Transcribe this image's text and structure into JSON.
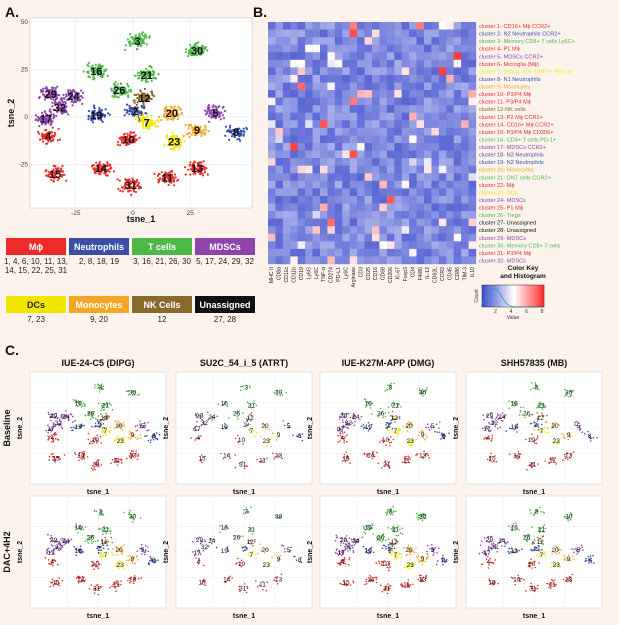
{
  "panels": {
    "a": "A.",
    "b": "B.",
    "c": "C."
  },
  "colors": {
    "macrophage": "#ee2a2a",
    "neutrophil": "#3a4fa8",
    "tcell": "#4cb848",
    "mdsc": "#8e44ad",
    "dc": "#f2e600",
    "monocyte": "#f5a623",
    "nk": "#8a6a2a",
    "unassigned": "#111111"
  },
  "panel_a": {
    "xlabel": "tsne_1",
    "ylabel": "tsne_2",
    "xticks": [
      "-25",
      "0",
      "25"
    ],
    "yticks": [
      "50",
      "25",
      "0",
      "-25",
      "-50"
    ],
    "cluster_labels": [
      {
        "id": "3",
        "x": 2,
        "y": 40,
        "type": "tcell"
      },
      {
        "id": "30",
        "x": 28,
        "y": 35,
        "type": "tcell"
      },
      {
        "id": "16",
        "x": -16,
        "y": 24,
        "type": "tcell"
      },
      {
        "id": "21",
        "x": 6,
        "y": 22,
        "type": "tcell"
      },
      {
        "id": "26",
        "x": -6,
        "y": 14,
        "type": "tcell"
      },
      {
        "id": "12",
        "x": 5,
        "y": 10,
        "type": "nk"
      },
      {
        "id": "29",
        "x": -36,
        "y": 12,
        "type": "mdsc"
      },
      {
        "id": "24",
        "x": -26,
        "y": 11,
        "type": "mdsc"
      },
      {
        "id": "32",
        "x": -32,
        "y": 5,
        "type": "mdsc"
      },
      {
        "id": "17",
        "x": -38,
        "y": -1,
        "type": "mdsc"
      },
      {
        "id": "19",
        "x": -16,
        "y": 1,
        "type": "neutrophil"
      },
      {
        "id": "2",
        "x": 1,
        "y": 3,
        "type": "neutrophil"
      },
      {
        "id": "7",
        "x": 6,
        "y": -3,
        "type": "dc"
      },
      {
        "id": "20",
        "x": 17,
        "y": 2,
        "type": "monocyte"
      },
      {
        "id": "5",
        "x": 36,
        "y": 2,
        "type": "mdsc"
      },
      {
        "id": "8",
        "x": 45,
        "y": -8,
        "type": "neutrophil"
      },
      {
        "id": "4",
        "x": -37,
        "y": -10,
        "type": "macrophage"
      },
      {
        "id": "10",
        "x": -2,
        "y": -12,
        "type": "macrophage"
      },
      {
        "id": "23",
        "x": 18,
        "y": -13,
        "type": "dc"
      },
      {
        "id": "9",
        "x": 28,
        "y": -7,
        "type": "monocyte"
      },
      {
        "id": "15",
        "x": -34,
        "y": -30,
        "type": "macrophage"
      },
      {
        "id": "14",
        "x": -14,
        "y": -27,
        "type": "macrophage"
      },
      {
        "id": "31",
        "x": -1,
        "y": -36,
        "type": "macrophage"
      },
      {
        "id": "11",
        "x": 15,
        "y": -32,
        "type": "macrophage"
      },
      {
        "id": "13",
        "x": 28,
        "y": -27,
        "type": "macrophage"
      }
    ]
  },
  "cell_types": [
    {
      "key": "macrophage",
      "name": "Mϕ",
      "clusters": "1, 4, 6, 10, 11, 13,\n14, 15, 22, 25, 31"
    },
    {
      "key": "neutrophil",
      "name": "Neutrophils",
      "clusters": "2, 8, 18, 19"
    },
    {
      "key": "tcell",
      "name": "T cells",
      "clusters": "3, 16, 21, 26, 30"
    },
    {
      "key": "mdsc",
      "name": "MDSCs",
      "clusters": "5, 17, 24, 29, 32"
    },
    {
      "key": "dc",
      "name": "DCs",
      "clusters": "7, 23"
    },
    {
      "key": "monocyte",
      "name": "Monocytes",
      "clusters": "9, 20"
    },
    {
      "key": "nk",
      "name": "NK Cells",
      "clusters": "12"
    },
    {
      "key": "unassigned",
      "name": "Unassigned",
      "clusters": "27, 28"
    }
  ],
  "panel_b": {
    "clusters": [
      {
        "label": "cluster 1- CD16+ Mϕ CCR2+",
        "type": "macrophage"
      },
      {
        "label": "cluster 2- N2 Neutrophils CCR2+",
        "type": "neutrophil"
      },
      {
        "label": "cluster 3- Memory CD8+ T cells Ly6C+",
        "type": "tcell"
      },
      {
        "label": "cluster 4- P1 Mϕ",
        "type": "macrophage"
      },
      {
        "label": "cluster 5- MDSCs CCR2+",
        "type": "mdsc"
      },
      {
        "label": "cluster 6- Microglia (Mϕ)",
        "type": "macrophage"
      },
      {
        "label": "cluster 7- DCs IL-10+ TIGIT+, PD-L1+",
        "type": "dc"
      },
      {
        "label": "cluster 8- N1 Neutrophils",
        "type": "neutrophil"
      },
      {
        "label": "cluster 9- Monocytes",
        "type": "monocyte"
      },
      {
        "label": "cluster 10- P3/P4 Mϕ",
        "type": "macrophage"
      },
      {
        "label": "cluster 11- P3/P4 Mϕ",
        "type": "macrophage"
      },
      {
        "label": "cluster 12-NK cells",
        "type": "nk"
      },
      {
        "label": "cluster 13- P2 Mϕ CCR2+",
        "type": "macrophage"
      },
      {
        "label": "cluster 14- CD16+ Mϕ CCR2+",
        "type": "macrophage"
      },
      {
        "label": "cluster 15- P3/P4 Mϕ CD206+",
        "type": "macrophage"
      },
      {
        "label": "cluster 16- CD4+ T cells PD-1+",
        "type": "tcell"
      },
      {
        "label": "cluster 17- MDSCs CCR2+",
        "type": "mdsc"
      },
      {
        "label": "cluster 18- N2 Neutrophils",
        "type": "neutrophil"
      },
      {
        "label": "cluster 19- N2 Neutrophils",
        "type": "neutrophil"
      },
      {
        "label": "cluster 20- Monocytes",
        "type": "monocyte"
      },
      {
        "label": "cluster 21- DNT cells CCR2+",
        "type": "tcell"
      },
      {
        "label": "cluster 22- Mϕ",
        "type": "macrophage"
      },
      {
        "label": "cluster 23- DCs",
        "type": "dc"
      },
      {
        "label": "cluster 24- MDSCs",
        "type": "mdsc"
      },
      {
        "label": "cluster 25- P1 Mϕ",
        "type": "macrophage"
      },
      {
        "label": "cluster 26- Tregs",
        "type": "tcell"
      },
      {
        "label": "cluster 27- Unassigned",
        "type": "unassigned"
      },
      {
        "label": "cluster 28- Unassigned",
        "type": "unassigned"
      },
      {
        "label": "cluster 29- MDSCs",
        "type": "mdsc"
      },
      {
        "label": "cluster 30- Memory CD8+ T cells",
        "type": "tcell"
      },
      {
        "label": "cluster 31- P3/P4 Mϕ",
        "type": "macrophage"
      },
      {
        "label": "cluster 32- MDSCs",
        "type": "mdsc"
      }
    ],
    "markers": [
      "MHC II",
      "CD8a",
      "CD11c",
      "CD11b",
      "CD19",
      "Ly6G",
      "Ly6C",
      "TNF-α",
      "CD274",
      "PD-L1",
      "Ly6C",
      "Arginase",
      "CD3",
      "CD25",
      "CD16",
      "CD68",
      "CD206",
      "Ki-67",
      "Foxp3",
      "CD4",
      "F4/80",
      "IL-12",
      "CD62L",
      "CCR2",
      "CD45",
      "CD86",
      "TIM-3",
      "IL10"
    ],
    "color_key": {
      "title": "Color Key\nand Histogram",
      "xlabel": "Value",
      "ticks": [
        "2",
        "4",
        "6",
        "8"
      ],
      "ylabel": "Count"
    }
  },
  "panel_c": {
    "samples": [
      "IUE-24-C5 (DIPG)",
      "SU2C_54_i_5 (ATRT)",
      "IUE-K27M-APP (DMG)",
      "SHH57835 (MB)"
    ],
    "conditions": [
      "Baseline",
      "DAC+4H2"
    ],
    "xlabel": "tsne_1",
    "ylabel": "tsne_2",
    "ticks": [
      "-50",
      "-25",
      "0",
      "25",
      "50"
    ]
  }
}
